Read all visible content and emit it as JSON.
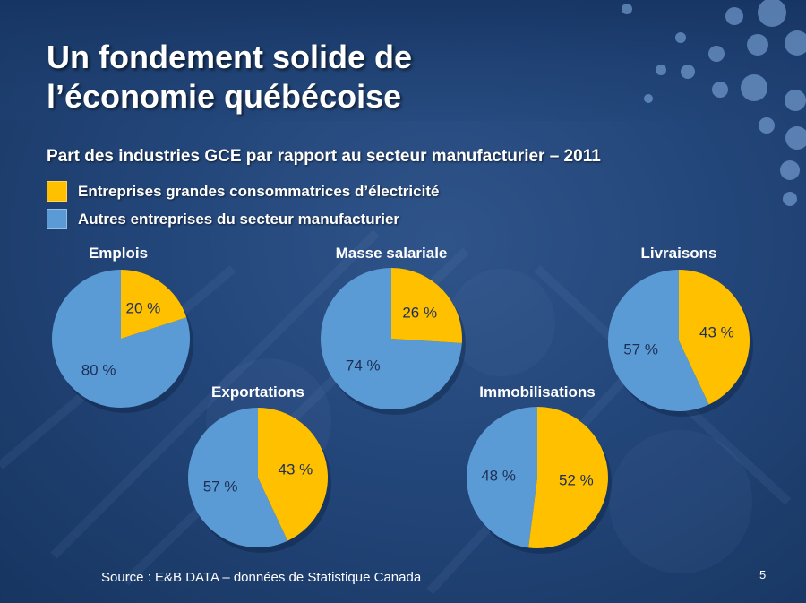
{
  "slide": {
    "title_line1": "Un fondement solide de",
    "title_line2": "l’économie québécoise",
    "subtitle": "Part des industries GCE par rapport au secteur manufacturier – 2011",
    "source": "Source : E&B DATA – données de Statistique Canada",
    "page_number": "5"
  },
  "colors": {
    "gce": "#ffc000",
    "autres": "#5b9bd5",
    "background": "#23467a"
  },
  "chart_data": {
    "type": "pie",
    "legend": [
      {
        "key": "gce",
        "label": "Entreprises grandes consommatrices d’électricité"
      },
      {
        "key": "autres",
        "label": "Autres entreprises du secteur manufacturier"
      }
    ],
    "pies": [
      {
        "id": "emplois",
        "title": "Emplois",
        "gce": 20,
        "autres": 80,
        "gce_label": "20 %",
        "autres_label": "80 %"
      },
      {
        "id": "masse-salariale",
        "title": "Masse salariale",
        "gce": 26,
        "autres": 74,
        "gce_label": "26 %",
        "autres_label": "74 %"
      },
      {
        "id": "livraisons",
        "title": "Livraisons",
        "gce": 43,
        "autres": 57,
        "gce_label": "43 %",
        "autres_label": "57 %"
      },
      {
        "id": "exportations",
        "title": "Exportations",
        "gce": 43,
        "autres": 57,
        "gce_label": "43 %",
        "autres_label": "57 %"
      },
      {
        "id": "immobilisations",
        "title": "Immobilisations",
        "gce": 52,
        "autres": 48,
        "gce_label": "52 %",
        "autres_label": "48 %"
      }
    ]
  }
}
